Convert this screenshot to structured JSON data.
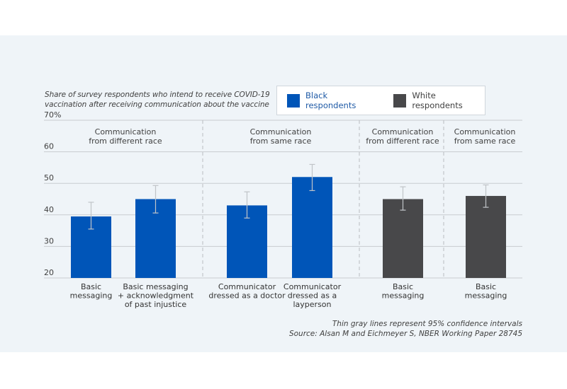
{
  "chart_data": {
    "type": "bar",
    "title": "Share of survey respondents who intend to receive COVID-19 vaccination after receiving communication about the vaccine",
    "subtitle_lines": [
      "Share of survey respondents who intend to receive COVID-19",
      "vaccination after receiving communication about the vaccine"
    ],
    "xlabel": "",
    "ylabel": "",
    "ylim": [
      20,
      70
    ],
    "yticks": [
      20,
      30,
      40,
      50,
      60,
      70
    ],
    "ytick_labels": [
      "20",
      "30",
      "40",
      "50",
      "60",
      "70%"
    ],
    "grid": true,
    "legend": {
      "placement": "top-right",
      "entries": [
        {
          "name": "Black respondents",
          "color": "#0055b8",
          "text_color": "#1f5aa6"
        },
        {
          "name": "White respondents",
          "color": "#48484a",
          "text_color": "#404040"
        }
      ]
    },
    "groups": [
      {
        "label_lines": [
          "Communication",
          "from different race"
        ],
        "series": "Black respondents",
        "bars": [
          0,
          1
        ]
      },
      {
        "label_lines": [
          "Communication",
          "from same race"
        ],
        "series": "Black respondents",
        "bars": [
          2,
          3
        ]
      },
      {
        "label_lines": [
          "Communication",
          "from different race"
        ],
        "series": "White respondents",
        "bars": [
          4
        ]
      },
      {
        "label_lines": [
          "Communication",
          "from same race"
        ],
        "series": "White respondents",
        "bars": [
          5
        ]
      }
    ],
    "bars": [
      {
        "category_lines": [
          "Basic",
          "messaging"
        ],
        "series": "Black respondents",
        "value": 39.5,
        "ci": [
          35.5,
          44.0
        ]
      },
      {
        "category_lines": [
          "Basic messaging",
          "+ acknowledgment",
          "of past injustice"
        ],
        "series": "Black respondents",
        "value": 45.0,
        "ci": [
          40.6,
          49.3
        ]
      },
      {
        "category_lines": [
          "Communicator",
          "dressed as a doctor"
        ],
        "series": "Black respondents",
        "value": 43.0,
        "ci": [
          39.0,
          47.3
        ]
      },
      {
        "category_lines": [
          "Communicator",
          "dressed as a",
          "layperson"
        ],
        "series": "Black respondents",
        "value": 52.0,
        "ci": [
          47.7,
          56.0
        ]
      },
      {
        "category_lines": [
          "Basic",
          "messaging"
        ],
        "series": "White respondents",
        "value": 45.0,
        "ci": [
          41.5,
          48.9
        ]
      },
      {
        "category_lines": [
          "Basic",
          "messaging"
        ],
        "series": "White respondents",
        "value": 46.0,
        "ci": [
          42.4,
          49.5
        ]
      }
    ],
    "annotations": [
      "Thin gray lines represent 95% confidence intervals",
      "Source: Alsan M and Eichmeyer S, NBER Working Paper 28745"
    ]
  },
  "footnotes": {
    "ci_note": "Thin gray lines represent 95% confidence intervals",
    "source": "Source: Alsan M and Eichmeyer S, NBER Working Paper 28745"
  },
  "legend": {
    "black_label": "Black respondents",
    "white_label": "White respondents"
  },
  "colors": {
    "black_series": "#0055b8",
    "white_series": "#48484a",
    "panel_bg": "#eff4f8",
    "gridline": "#c8ccd0",
    "ci_line": "#c0c4c8"
  }
}
